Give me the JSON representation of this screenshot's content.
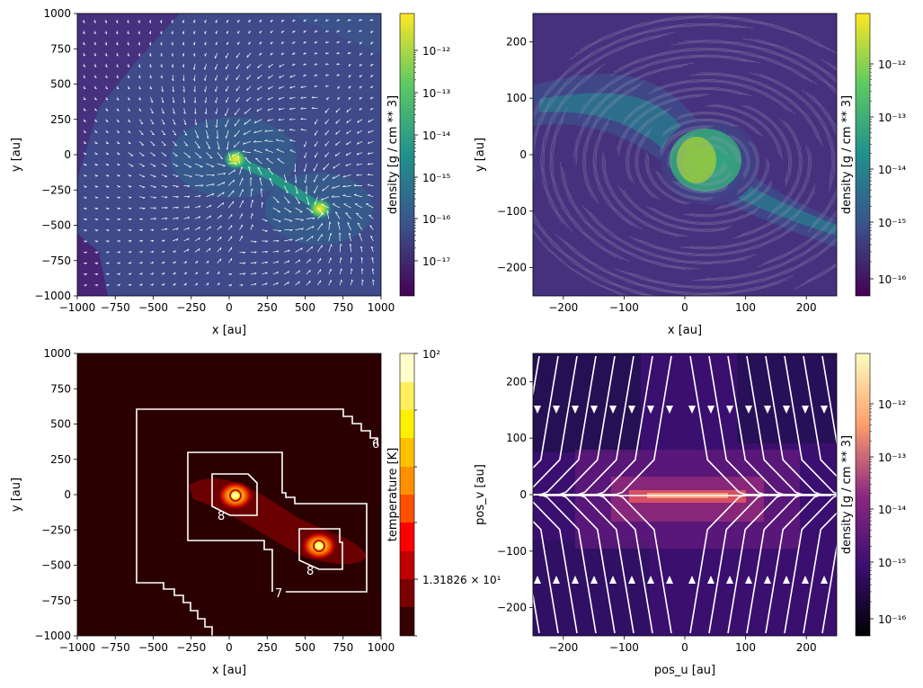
{
  "chart_data": [
    {
      "type": "heatmap",
      "overlay": "quiver",
      "colormap": "viridis",
      "xlabel": "x [au]",
      "ylabel": "y [au]",
      "xlim": [
        -1000,
        1000
      ],
      "ylim": [
        -1000,
        1000
      ],
      "xticks": [
        "−1000",
        "−750",
        "−500",
        "−250",
        "0",
        "250",
        "500",
        "750",
        "1000"
      ],
      "yticks": [
        "1000",
        "750",
        "500",
        "250",
        "0",
        "−250",
        "−500",
        "−750",
        "−1000"
      ],
      "colorbar": {
        "label": "density [g / cm ** 3]",
        "scale": "log",
        "ticks": [
          "10⁻¹²",
          "10⁻¹³",
          "10⁻¹⁴",
          "10⁻¹⁵",
          "10⁻¹⁶",
          "10⁻¹⁷"
        ]
      },
      "features": [
        {
          "x": 30,
          "y": -20
        },
        {
          "x": 600,
          "y": -380
        }
      ]
    },
    {
      "type": "heatmap",
      "overlay": "line integral convolution",
      "colormap": "viridis",
      "xlabel": "x [au]",
      "ylabel": "y [au]",
      "xlim": [
        -250,
        250
      ],
      "ylim": [
        -250,
        250
      ],
      "xticks": [
        "−200",
        "−100",
        "0",
        "100",
        "200"
      ],
      "yticks": [
        "200",
        "100",
        "0",
        "−100",
        "−200"
      ],
      "colorbar": {
        "label": "density [g / cm ** 3]",
        "scale": "log",
        "ticks": [
          "10⁻¹²",
          "10⁻¹³",
          "10⁻¹⁴",
          "10⁻¹⁵",
          "10⁻¹⁶"
        ]
      },
      "features": [
        {
          "x": 40,
          "y": 0
        }
      ]
    },
    {
      "type": "heatmap",
      "overlay": "contour",
      "colormap": "hot",
      "xlabel": "x [au]",
      "ylabel": "y [au]",
      "xlim": [
        -1000,
        1000
      ],
      "ylim": [
        -1000,
        1000
      ],
      "xticks": [
        "−1000",
        "−750",
        "−500",
        "−250",
        "0",
        "250",
        "500",
        "750",
        "1000"
      ],
      "yticks": [
        "1000",
        "750",
        "500",
        "250",
        "0",
        "−250",
        "−500",
        "−750",
        "−1000"
      ],
      "colorbar": {
        "label": "temperature [K]",
        "scale": "log",
        "ticks": [
          "10²",
          "1.31826 × 10¹"
        ]
      },
      "contour_labels": [
        "6",
        "7",
        "8",
        "8"
      ],
      "features": [
        {
          "x": 30,
          "y": 0
        },
        {
          "x": 600,
          "y": -360
        }
      ]
    },
    {
      "type": "heatmap",
      "overlay": "streamlines",
      "colormap": "magma",
      "xlabel": "pos_u [au]",
      "ylabel": "pos_v [au]",
      "xlim": [
        -250,
        250
      ],
      "ylim": [
        -250,
        250
      ],
      "xticks": [
        "−200",
        "−100",
        "0",
        "100",
        "200"
      ],
      "yticks": [
        "200",
        "100",
        "0",
        "−100",
        "−200"
      ],
      "colorbar": {
        "label": "density [g / cm ** 3]",
        "scale": "log",
        "ticks": [
          "10⁻¹²",
          "10⁻¹³",
          "10⁻¹⁴",
          "10⁻¹⁵",
          "10⁻¹⁶"
        ]
      }
    }
  ]
}
